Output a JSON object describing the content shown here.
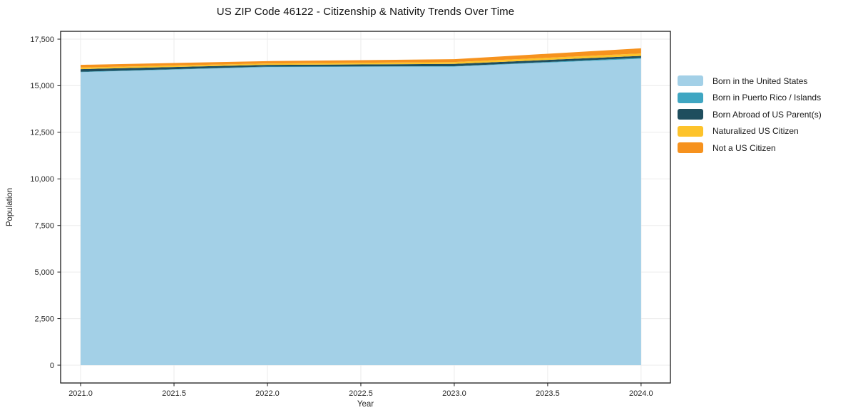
{
  "chart_data": {
    "type": "area",
    "stacked": true,
    "title": "US ZIP Code 46122 - Citizenship & Nativity Trends Over Time",
    "xlabel": "Year",
    "ylabel": "Population",
    "x": [
      2021,
      2022,
      2023,
      2024
    ],
    "series": [
      {
        "name": "Born in the United States",
        "color": "#A3D0E7",
        "values": [
          15730,
          16000,
          16030,
          16450
        ]
      },
      {
        "name": "Born in Puerto Rico / Islands",
        "color": "#3FA6C2",
        "values": [
          20,
          30,
          20,
          50
        ]
      },
      {
        "name": "Born Abroad of US Parent(s)",
        "color": "#1F4E5E",
        "values": [
          140,
          90,
          120,
          100
        ]
      },
      {
        "name": "Naturalized US Citizen",
        "color": "#FDC32B",
        "values": [
          90,
          75,
          100,
          130
        ]
      },
      {
        "name": "Not a US Citizen",
        "color": "#F6921E",
        "values": [
          140,
          125,
          155,
          280
        ]
      }
    ],
    "xticks": {
      "values": [
        2021.0,
        2021.5,
        2022.0,
        2022.5,
        2023.0,
        2023.5,
        2024.0
      ],
      "labels": [
        "2021.0",
        "2021.5",
        "2022.0",
        "2022.5",
        "2023.0",
        "2023.5",
        "2024.0"
      ]
    },
    "yticks": {
      "values": [
        0,
        2500,
        5000,
        7500,
        10000,
        12500,
        15000,
        17500
      ],
      "labels": [
        "0",
        "2,500",
        "5,000",
        "7,500",
        "10,000",
        "12,500",
        "15,000",
        "17,500"
      ]
    },
    "xlim": [
      2020.893,
      2024.157
    ],
    "ylim": [
      -955,
      17920
    ],
    "grid": true,
    "legend_position": "right"
  },
  "style_colors": {
    "grid": "#ebebeb",
    "spine": "#1a1a1a",
    "tick_text": "#262626",
    "background": "#ffffff"
  }
}
